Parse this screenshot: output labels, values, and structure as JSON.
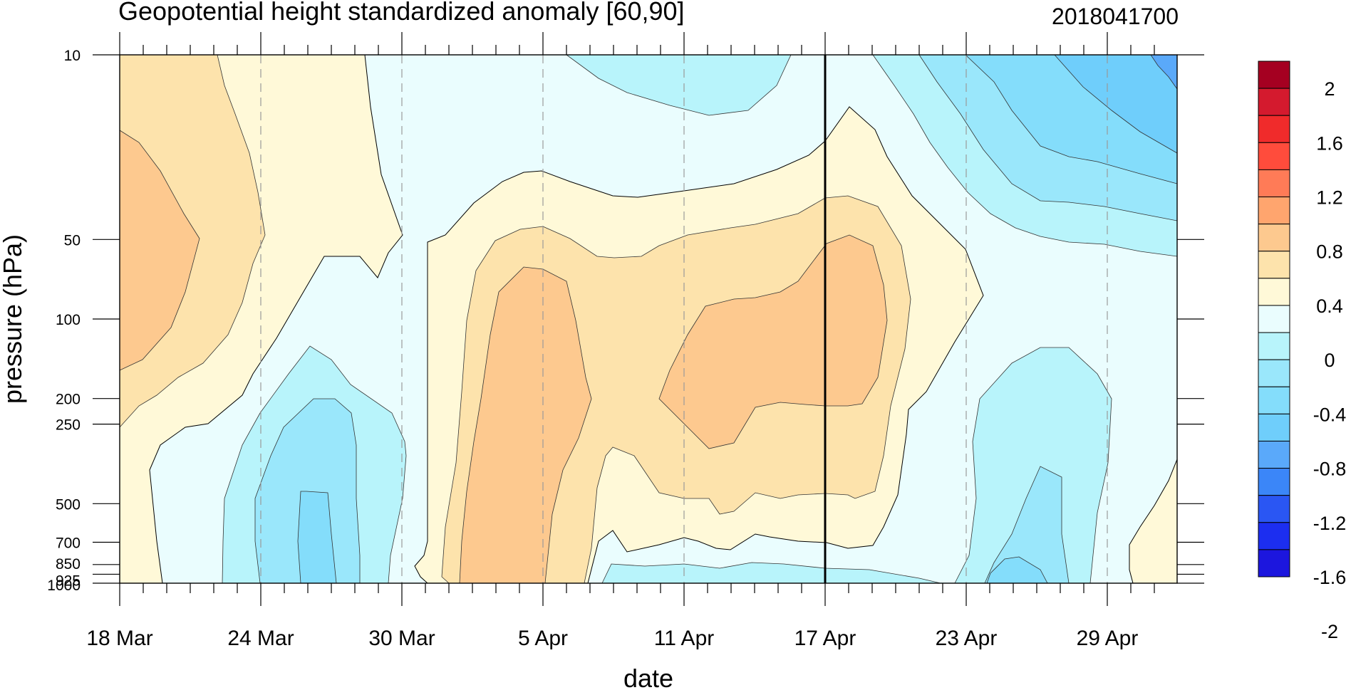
{
  "chart_data": {
    "type": "heatmap",
    "title": "Geopotential height standardized anomaly [60,90]",
    "title_right": "2018041700",
    "xlabel": "date",
    "ylabel": "pressure (hPa)",
    "x_ticks": [
      "18 Mar",
      "24 Mar",
      "30 Mar",
      "5 Apr",
      "11 Apr",
      "17 Apr",
      "23 Apr",
      "29 Apr"
    ],
    "y_ticks": [
      "10",
      "50",
      "100",
      "200",
      "250",
      "500",
      "700",
      "850",
      "925",
      "1000"
    ],
    "y_scale": "log",
    "ylim": [
      1000,
      10
    ],
    "x_start": "18 Mar",
    "x_end": "2 May",
    "forecast_start_line": "17 Apr",
    "grid": "dashed vertical lines at labeled dates",
    "colorbar": {
      "labels": [
        "2",
        "1.6",
        "1.2",
        "0.8",
        "0.4",
        "0",
        "-0.4",
        "-0.8",
        "-1.2",
        "-1.6",
        "-2"
      ],
      "colors": [
        "#a50021",
        "#d41a2e",
        "#f02b2b",
        "#ff4c3c",
        "#ff7b57",
        "#ffa56e",
        "#fdc98f",
        "#fde3ac",
        "#fff9d8",
        "#eafdfe",
        "#b8f4fb",
        "#9ae7fb",
        "#84ddfb",
        "#6fcefb",
        "#5aa9fa",
        "#3b86f8",
        "#2a56f3",
        "#1c2ef0",
        "#1c16de"
      ]
    },
    "series": [
      {
        "level": "-0.4 to 0.0",
        "color": "#eafdfe",
        "values": [
          [
            10,
            10
          ],
          [
            13,
            35
          ],
          [
            22,
            30
          ],
          [
            24,
            10
          ],
          [
            30,
            15
          ],
          [
            35,
            30
          ],
          [
            42,
            45
          ],
          [
            45,
            60
          ],
          [
            45,
            10
          ],
          [
            40,
            10
          ],
          [
            30,
            10
          ],
          [
            25,
            10
          ],
          [
            20,
            10
          ]
        ]
      },
      {
        "level": "0.0 to 0.4",
        "color": "#fff9d8",
        "values": [
          [
            0,
            10
          ],
          [
            10,
            10
          ],
          [
            5,
            40
          ],
          [
            2,
            70
          ],
          [
            0,
            80
          ]
        ]
      },
      {
        "level": "0.4 to 0.8",
        "color": "#fde3ac",
        "values": [
          [
            0,
            25
          ],
          [
            6,
            25
          ],
          [
            8,
            55
          ],
          [
            5,
            80
          ],
          [
            0,
            80
          ]
        ]
      }
    ]
  }
}
